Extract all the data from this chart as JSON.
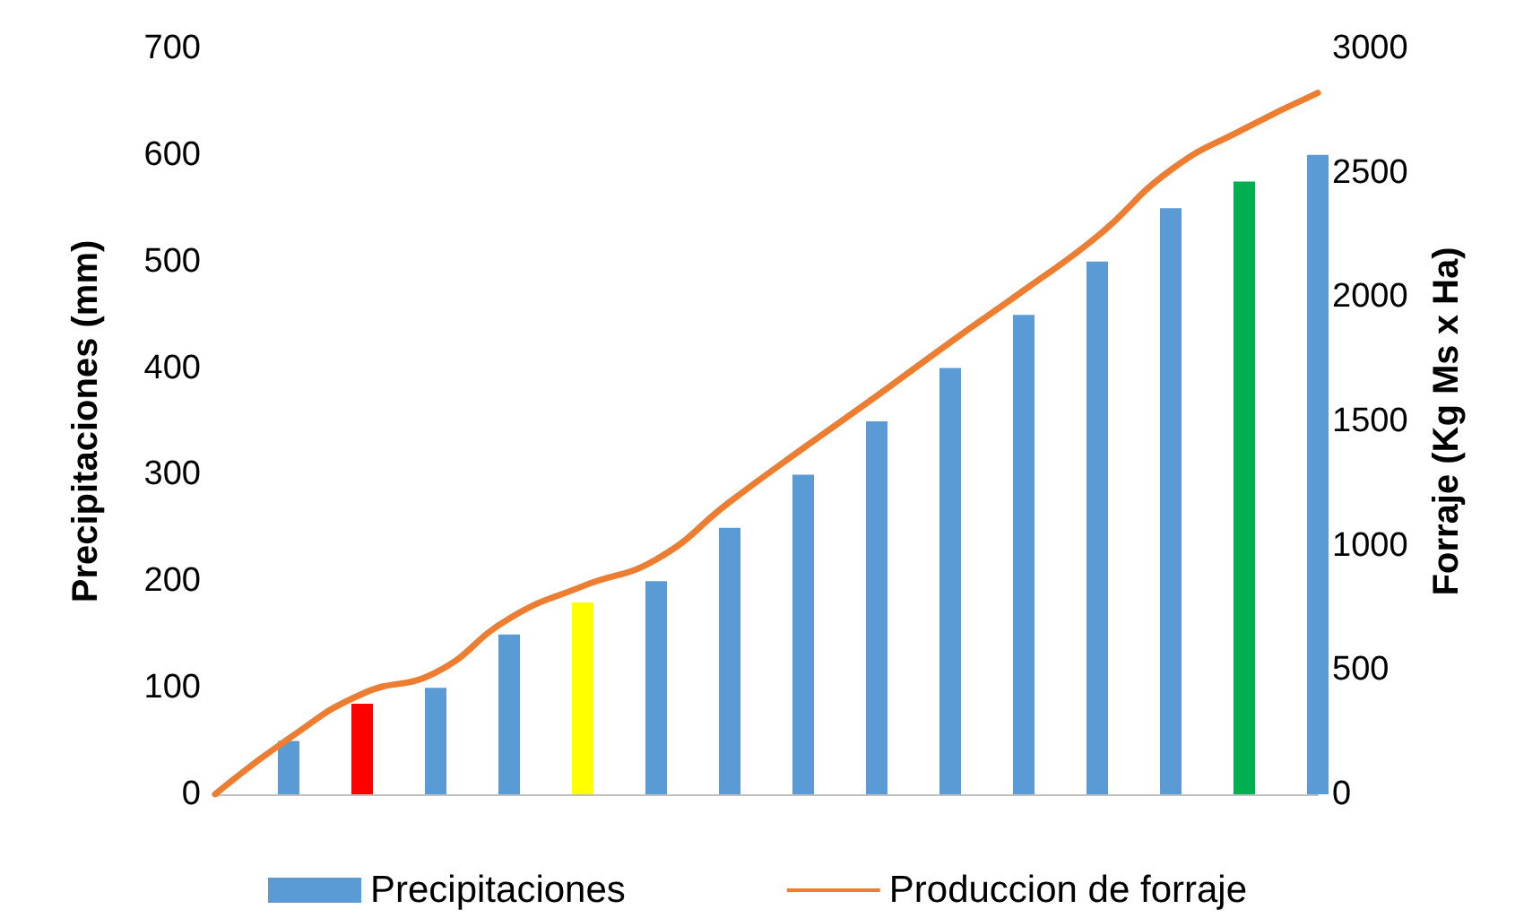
{
  "chart_data": {
    "type": "bar",
    "categories": [
      null,
      null,
      null,
      null,
      null,
      null,
      null,
      null,
      null,
      null,
      null,
      null,
      null,
      null,
      null,
      null
    ],
    "ylabel": "Precipitaciones (mm)",
    "y2label": "Forraje (Kg Ms x Ha)",
    "ylim": [
      0,
      700
    ],
    "yticks": [
      0,
      100,
      200,
      300,
      400,
      500,
      600,
      700
    ],
    "y2lim": [
      0,
      3000
    ],
    "y2ticks": [
      0,
      500,
      1000,
      1500,
      2000,
      2500,
      3000
    ],
    "grid": false,
    "legend": "bottom",
    "marker": "none",
    "line_style": "solid",
    "series": [
      {
        "name": "Precipitaciones",
        "color": "#5b9bd5",
        "values": [
          null,
          50,
          85,
          100,
          150,
          180,
          200,
          250,
          300,
          350,
          400,
          450,
          500,
          550,
          575,
          600
        ],
        "colors": [
          "#5b9bd5",
          "#5b9bd5",
          "#ff0000",
          "#5b9bd5",
          "#5b9bd5",
          "#ffff00",
          "#5b9bd5",
          "#5b9bd5",
          "#5b9bd5",
          "#5b9bd5",
          "#5b9bd5",
          "#5b9bd5",
          "#5b9bd5",
          "#5b9bd5",
          "#00b050",
          "#5b9bd5"
        ]
      },
      {
        "name": "Produccion de forraje",
        "type": "line",
        "axis": "y2",
        "color": "#ed7d31",
        "values": [
          0,
          224,
          404,
          490,
          707,
          837,
          945,
          1176,
          1392,
          1602,
          1818,
          2027,
          2244,
          2511,
          2677,
          2821
        ]
      }
    ]
  }
}
